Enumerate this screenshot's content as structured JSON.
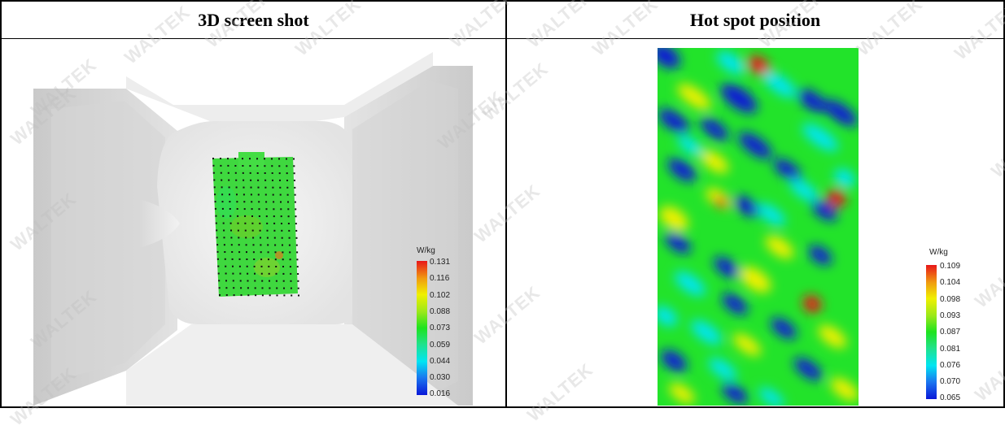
{
  "headers": {
    "left": "3D screen shot",
    "right": "Hot spot position"
  },
  "legend_left": {
    "unit": "W/kg",
    "ticks": [
      "0.131",
      "0.116",
      "0.102",
      "0.088",
      "0.073",
      "0.059",
      "0.044",
      "0.030",
      "0.016"
    ]
  },
  "legend_right": {
    "unit": "W/kg",
    "ticks": [
      "0.109",
      "0.104",
      "0.098",
      "0.093",
      "0.087",
      "0.081",
      "0.076",
      "0.070",
      "0.065"
    ]
  },
  "watermark": "WALTEK",
  "colors": {
    "heat_red": "#e8161a",
    "heat_yellow": "#f0f000",
    "heat_green": "#1ee31e",
    "heat_cyan": "#00e5f2",
    "heat_blue": "#0a18d8"
  }
}
